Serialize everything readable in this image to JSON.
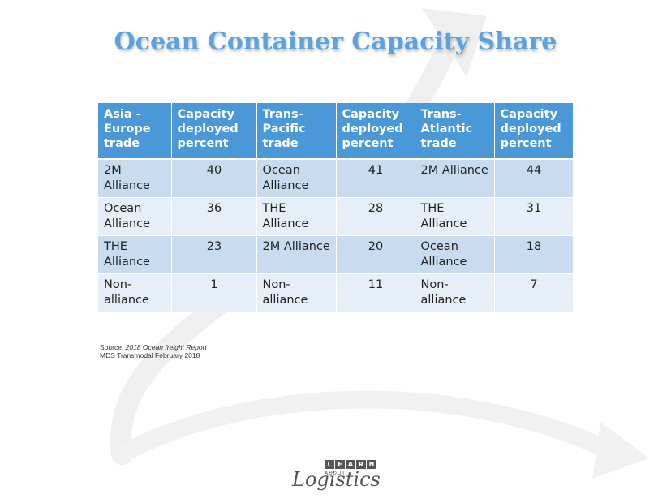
{
  "title": "Ocean Container Capacity Share",
  "table": {
    "headers": [
      "Asia - Europe trade",
      "Capacity deployed percent",
      "Trans-Pacific trade",
      "Capacity deployed percent",
      "Trans-Atlantic trade",
      "Capacity deployed percent"
    ],
    "rows": [
      [
        "2M Alliance",
        "40",
        "Ocean Alliance",
        "41",
        "2M Alliance",
        "44"
      ],
      [
        "Ocean Alliance",
        "36",
        "THE Alliance",
        "28",
        "THE Alliance",
        "31"
      ],
      [
        "THE Alliance",
        "23",
        "2M Alliance",
        "20",
        "Ocean Alliance",
        "18"
      ],
      [
        "Non-alliance",
        "1",
        "Non-alliance",
        "11",
        "Non-alliance",
        "7"
      ]
    ]
  },
  "source": {
    "prefix": "Source: ",
    "report": "2018 Ocean freight  Report",
    "line2": "MDS Transmodal February 2018"
  },
  "logo": {
    "letters": [
      "L",
      "E",
      "A",
      "R",
      "N"
    ],
    "about": "ABOUT",
    "word": "Logistics"
  },
  "colors": {
    "title": "#5aa3de",
    "header_bg": "#4a98d8",
    "row_dark": "#c9dbef",
    "row_light": "#e6eef8"
  }
}
